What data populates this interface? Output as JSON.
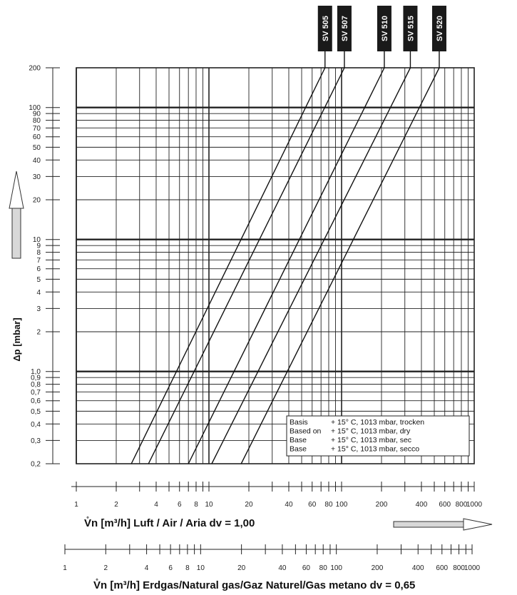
{
  "chart_data": {
    "type": "line",
    "xscale": "log",
    "yscale": "log",
    "xlim": [
      1,
      1000
    ],
    "ylim": [
      0.2,
      200
    ],
    "grid": true,
    "ylabel": "Δp [mbar]",
    "xlabel": "V̊n [m³/h] Luft / Air / Aria dv = 1,00",
    "xlabel2": "V̊n [m³/h] Erdgas/Natural gas/Gaz Naturel/Gas metano dv = 0,65",
    "y_ticks": [
      "0,2",
      "0,3",
      "0,4",
      "0,5",
      "0,6",
      "0,7",
      "0,8",
      "0,9",
      "1,0",
      "2",
      "3",
      "4",
      "5",
      "6",
      "7",
      "8",
      "9",
      "10",
      "20",
      "30",
      "40",
      "50",
      "60",
      "70",
      "80",
      "90",
      "100",
      "200"
    ],
    "x_ticks_air": [
      "1",
      "2",
      "4",
      "6",
      "8",
      "10",
      "20",
      "40",
      "60",
      "80",
      "100",
      "200",
      "400",
      "600",
      "800",
      "1000"
    ],
    "x_ticks_gas": [
      "1",
      "2",
      "4",
      "6",
      "8",
      "10",
      "20",
      "40",
      "60",
      "80",
      "100",
      "200",
      "400",
      "600",
      "800",
      "1000"
    ],
    "legend_lines": [
      {
        "a": "Basis",
        "b": "+ 15° C, 1013 mbar, trocken"
      },
      {
        "a": "Based on",
        "b": "+ 15° C, 1013 mbar, dry"
      },
      {
        "a": "Base",
        "b": "+ 15° C, 1013 mbar, sec"
      },
      {
        "a": "Base",
        "b": "+ 15° C, 1013 mbar, secco"
      }
    ],
    "series": [
      {
        "name": "SV 505",
        "x": [
          2.6,
          75
        ],
        "y": [
          0.2,
          200
        ]
      },
      {
        "name": "SV 507",
        "x": [
          3.5,
          105
        ],
        "y": [
          0.2,
          200
        ]
      },
      {
        "name": "SV 510",
        "x": [
          7,
          210
        ],
        "y": [
          0.2,
          200
        ]
      },
      {
        "name": "SV 515",
        "x": [
          10.5,
          330
        ],
        "y": [
          0.2,
          200
        ]
      },
      {
        "name": "SV 520",
        "x": [
          17.5,
          545
        ],
        "y": [
          0.2,
          200
        ]
      }
    ]
  }
}
